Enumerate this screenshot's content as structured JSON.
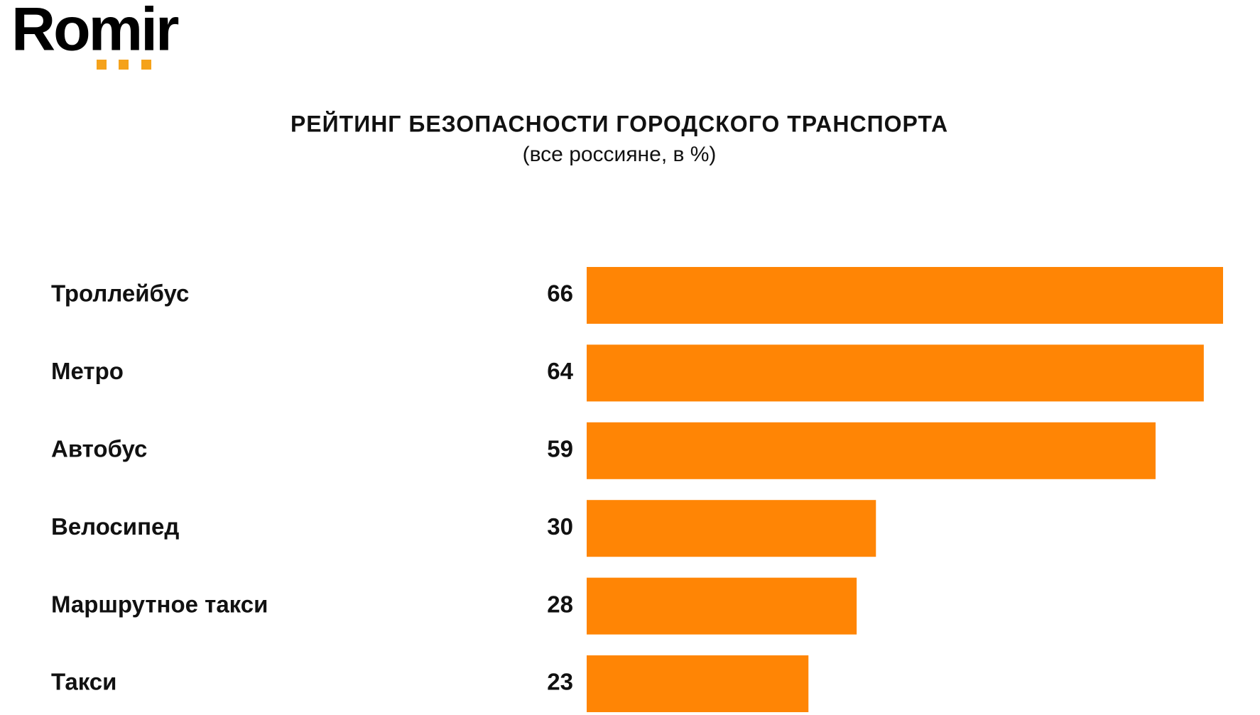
{
  "logo": "Romir",
  "chart_data": {
    "type": "hbar",
    "title": "РЕЙТИНГ БЕЗОПАСНОСТИ ГОРОДСКОГО ТРАНСПОРТА",
    "subtitle": "(все россияне, в %)",
    "categories": [
      "Троллейбус",
      "Метро",
      "Автобус",
      "Велосипед",
      "Маршрутное такси",
      "Такси"
    ],
    "values": [
      66,
      64,
      59,
      30,
      28,
      23
    ],
    "color": "#ff8505"
  }
}
